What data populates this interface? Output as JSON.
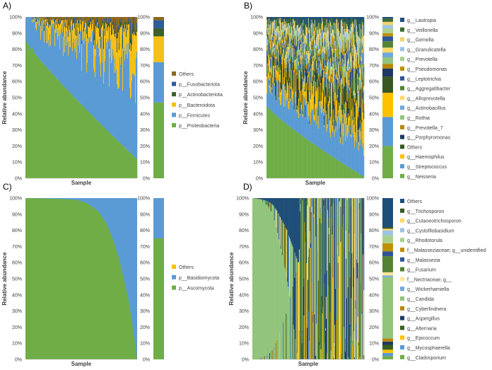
{
  "figure": {
    "description_free": true
  },
  "chart_data": [
    {
      "panel": "A)",
      "type": "stacked-area",
      "ylabel": "Relative abundance",
      "xlabel": "Sample",
      "yticks": [
        "0%",
        "10%",
        "20%",
        "30%",
        "40%",
        "50%",
        "60%",
        "70%",
        "80%",
        "90%",
        "100%"
      ],
      "bar_yticks": [
        "0%",
        "10%",
        "20%",
        "30%",
        "40%",
        "50%",
        "60%",
        "70%",
        "80%",
        "90%",
        "100%"
      ],
      "legend": [
        {
          "label": "Others",
          "color": "#8B6A1E"
        },
        {
          "label": "p__Fusobacteriota",
          "color": "#2E5C9A"
        },
        {
          "label": "p__Actinobacteriota",
          "color": "#3D5F2B"
        },
        {
          "label": "p__Bacteroidota",
          "color": "#F5C017"
        },
        {
          "label": "p__Firmicutes",
          "color": "#5B9BD5"
        },
        {
          "label": "p__Proteobacteria",
          "color": "#70AD47"
        }
      ],
      "area_profile": {
        "Proteobacteria_start_pct": 85,
        "Proteobacteria_end_pct": 12,
        "Firmicutes_start_pct": 14,
        "Firmicutes_end_pct": 55
      },
      "mean_bar_pct": [
        {
          "label": "p__Proteobacteria",
          "value": 47
        },
        {
          "label": "p__Firmicutes",
          "value": 25
        },
        {
          "label": "p__Bacteroidota",
          "value": 16
        },
        {
          "label": "p__Actinobacteriota",
          "value": 5
        },
        {
          "label": "p__Fusobacteriota",
          "value": 5
        },
        {
          "label": "Others",
          "value": 2
        }
      ]
    },
    {
      "panel": "B)",
      "type": "stacked-area",
      "ylabel": "Relative abundance",
      "xlabel": "Sample",
      "yticks": [
        "0%",
        "10%",
        "20%",
        "30%",
        "40%",
        "50%",
        "60%",
        "70%",
        "80%",
        "90%",
        "100%"
      ],
      "bar_yticks": [
        "0%",
        "10%",
        "20%",
        "30%",
        "40%",
        "50%",
        "60%",
        "70%",
        "80%",
        "90%",
        "100%"
      ],
      "legend": [
        {
          "label": "g__Lautropia",
          "color": "#1F4E79"
        },
        {
          "label": "g__Veillonella",
          "color": "#3D6B2F"
        },
        {
          "label": "g__Gemella",
          "color": "#F2D36B"
        },
        {
          "label": "g__Granulicatella",
          "color": "#9DC3E6"
        },
        {
          "label": "g__Prevotella",
          "color": "#A9D18E"
        },
        {
          "label": "g__Pseudomonas",
          "color": "#BF9000"
        },
        {
          "label": "g__Leptotrichia",
          "color": "#2F5597"
        },
        {
          "label": "g__Aggregatibacter",
          "color": "#548235"
        },
        {
          "label": "g__Alloprevotella",
          "color": "#FFD966"
        },
        {
          "label": "g__Actinobacillus",
          "color": "#6FA8DC"
        },
        {
          "label": "g__Rothia",
          "color": "#93C47D"
        },
        {
          "label": "g__Prevotella_7",
          "color": "#B8860B"
        },
        {
          "label": "g__Porphyromonas",
          "color": "#1F3864"
        },
        {
          "label": "Others",
          "color": "#385723"
        },
        {
          "label": "g__Haemophilus",
          "color": "#FFC000"
        },
        {
          "label": "g__Streptococcus",
          "color": "#5B9BD5"
        },
        {
          "label": "g__Neisseria",
          "color": "#70AD47"
        }
      ],
      "area_profile": {
        "Neisseria_start_pct": 45,
        "Neisseria_end_pct": 1,
        "Streptococcus_start_pct": 15,
        "Streptococcus_end_pct": 25
      },
      "mean_bar_pct": [
        {
          "label": "g__Neisseria",
          "value": 20
        },
        {
          "label": "g__Streptococcus",
          "value": 18
        },
        {
          "label": "g__Haemophilus",
          "value": 15
        },
        {
          "label": "Others",
          "value": 10
        },
        {
          "label": "g__Porphyromonas",
          "value": 5
        },
        {
          "label": "g__Prevotella_7",
          "value": 3
        },
        {
          "label": "g__Rothia",
          "value": 4
        },
        {
          "label": "g__Actinobacillus",
          "value": 3
        },
        {
          "label": "g__Alloprevotella",
          "value": 3
        },
        {
          "label": "g__Aggregatibacter",
          "value": 4
        },
        {
          "label": "g__Leptotrichia",
          "value": 3
        },
        {
          "label": "g__Pseudomonas",
          "value": 2
        },
        {
          "label": "g__Prevotella",
          "value": 3
        },
        {
          "label": "g__Granulicatella",
          "value": 2
        },
        {
          "label": "g__Gemella",
          "value": 2
        },
        {
          "label": "g__Veillonella",
          "value": 2
        },
        {
          "label": "g__Lautropia",
          "value": 1
        }
      ]
    },
    {
      "panel": "C)",
      "type": "stacked-area",
      "ylabel": "Relative abundance",
      "xlabel": "Sample",
      "yticks": [
        "0%",
        "10%",
        "20%",
        "30%",
        "40%",
        "50%",
        "60%",
        "70%",
        "80%",
        "90%",
        "100%"
      ],
      "bar_yticks": [
        "0%",
        "10%",
        "20%",
        "30%",
        "40%",
        "50%",
        "60%",
        "70%",
        "80%",
        "90%",
        "100%"
      ],
      "legend": [
        {
          "label": "Others",
          "color": "#FFC000"
        },
        {
          "label": "p__Basidiomycota",
          "color": "#5B9BD5"
        },
        {
          "label": "p__Ascomycota",
          "color": "#70AD47"
        }
      ],
      "ascomycota_curve_pct": [
        [
          0,
          100
        ],
        [
          0.3,
          99.5
        ],
        [
          0.45,
          99
        ],
        [
          0.55,
          97
        ],
        [
          0.65,
          92
        ],
        [
          0.72,
          85
        ],
        [
          0.78,
          75
        ],
        [
          0.84,
          62
        ],
        [
          0.88,
          50
        ],
        [
          0.92,
          38
        ],
        [
          0.95,
          25
        ],
        [
          0.98,
          10
        ],
        [
          1.0,
          0
        ]
      ],
      "mean_bar_pct": [
        {
          "label": "p__Ascomycota",
          "value": 75
        },
        {
          "label": "p__Basidiomycota",
          "value": 25
        },
        {
          "label": "Others",
          "value": 0
        }
      ]
    },
    {
      "panel": "D)",
      "type": "stacked-area",
      "ylabel": "Relative abundance",
      "xlabel": "Sample",
      "yticks": [
        "0%",
        "10%",
        "20%",
        "30%",
        "40%",
        "50%",
        "60%",
        "70%",
        "80%",
        "90%",
        "100%"
      ],
      "bar_yticks": [
        "0%",
        "10%",
        "20%",
        "30%",
        "40%",
        "50%",
        "60%",
        "70%",
        "80%",
        "90%",
        "100%"
      ],
      "legend": [
        {
          "label": "Others",
          "color": "#1F4E79"
        },
        {
          "label": "g__Trichosporon",
          "color": "#375623"
        },
        {
          "label": "g__Cutaneotrichosporon",
          "color": "#FFD966"
        },
        {
          "label": "g__Cystofilobasidium",
          "color": "#9DC3E6"
        },
        {
          "label": "g__Rhodotorula",
          "color": "#A9D18E"
        },
        {
          "label": "f__Malasseziaceae; g__unidentified",
          "color": "#BF9000"
        },
        {
          "label": "g__Malassezia",
          "color": "#2F5597"
        },
        {
          "label": "g__Fusarium",
          "color": "#548235"
        },
        {
          "label": "f__Nectriaceae; g__",
          "color": "#FFE699"
        },
        {
          "label": "g__Wickerhamiella",
          "color": "#6FA8DC"
        },
        {
          "label": "g__Candida",
          "color": "#92C47C"
        },
        {
          "label": "g__Cyberlindnera",
          "color": "#B8860B"
        },
        {
          "label": "g__Aspergillus",
          "color": "#203864"
        },
        {
          "label": "g__Alternaria",
          "color": "#3A5F22"
        },
        {
          "label": "g__Epicoccum",
          "color": "#FFC000"
        },
        {
          "label": "g__Mycosphaerella",
          "color": "#5B9BD5"
        },
        {
          "label": "g__Cladosporium",
          "color": "#70AD47"
        }
      ],
      "candida_curve_pct": [
        [
          0,
          100
        ],
        [
          0.05,
          99
        ],
        [
          0.1,
          97
        ],
        [
          0.14,
          95
        ],
        [
          0.18,
          90
        ],
        [
          0.22,
          80
        ],
        [
          0.25,
          70
        ],
        [
          0.28,
          60
        ],
        [
          0.31,
          50
        ],
        [
          0.33,
          40
        ],
        [
          0.35,
          30
        ],
        [
          0.37,
          20
        ],
        [
          0.39,
          10
        ],
        [
          0.41,
          0
        ]
      ],
      "mean_bar_pct": [
        {
          "label": "g__Cladosporium",
          "value": 2
        },
        {
          "label": "g__Mycosphaerella",
          "value": 2
        },
        {
          "label": "g__Epicoccum",
          "value": 2
        },
        {
          "label": "g__Alternaria",
          "value": 3
        },
        {
          "label": "g__Aspergillus",
          "value": 2
        },
        {
          "label": "g__Cyberlindnera",
          "value": 2
        },
        {
          "label": "g__Candida",
          "value": 38
        },
        {
          "label": "g__Wickerhamiella",
          "value": 1
        },
        {
          "label": "f__Nectriaceae; g__",
          "value": 2
        },
        {
          "label": "g__Fusarium",
          "value": 10
        },
        {
          "label": "g__Malassezia",
          "value": 3
        },
        {
          "label": "f__Malasseziaceae; g__unidentified",
          "value": 5
        },
        {
          "label": "g__Rhodotorula",
          "value": 5
        },
        {
          "label": "g__Cystofilobasidium",
          "value": 3
        },
        {
          "label": "g__Cutaneotrichosporon",
          "value": 1
        },
        {
          "label": "g__Trichosporon",
          "value": 1
        },
        {
          "label": "Others",
          "value": 18
        }
      ]
    }
  ]
}
